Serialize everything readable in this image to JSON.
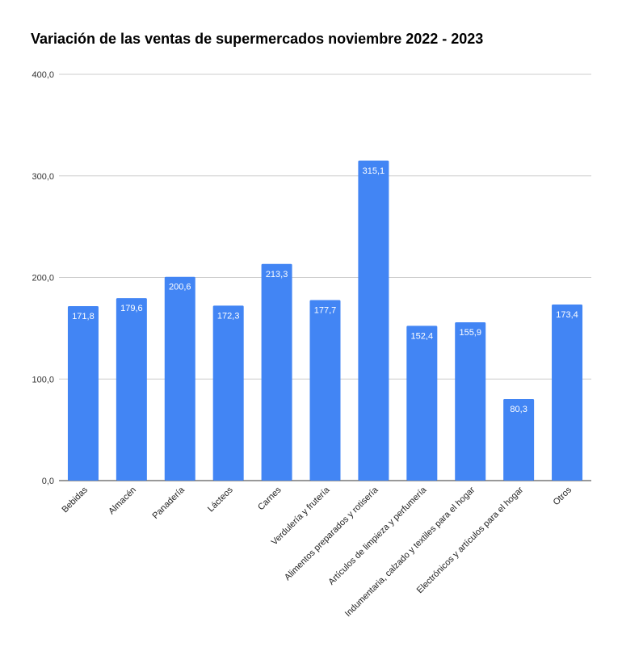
{
  "chart_data": {
    "type": "bar",
    "title": "Variación de las ventas de supermercados noviembre 2022 - 2023",
    "xlabel": "",
    "ylabel": "",
    "ylim": [
      0,
      400
    ],
    "yticks": [
      "0,0",
      "100,0",
      "200,0",
      "300,0",
      "400,0"
    ],
    "ytick_values": [
      0,
      100,
      200,
      300,
      400
    ],
    "grid": true,
    "legend": "none",
    "bar_color": "#4285f4",
    "categories": [
      "Bebidas",
      "Almacén",
      "Panadería",
      "Lácteos",
      "Carnes",
      "Verdulería y frutería",
      "Alimentos preparados y rotisería",
      "Artículos de limpieza y perfumería",
      "Indumentaria, calzado y textiles para el hogar",
      "Electrónicos y artículos para el hogar",
      "Otros"
    ],
    "values": [
      171.8,
      179.6,
      200.6,
      172.3,
      213.3,
      177.7,
      315.1,
      152.4,
      155.9,
      80.3,
      173.4
    ],
    "data_labels": [
      "171,8",
      "179,6",
      "200,6",
      "172,3",
      "213,3",
      "177,7",
      "315,1",
      "152,4",
      "155,9",
      "80,3",
      "173,4"
    ]
  }
}
